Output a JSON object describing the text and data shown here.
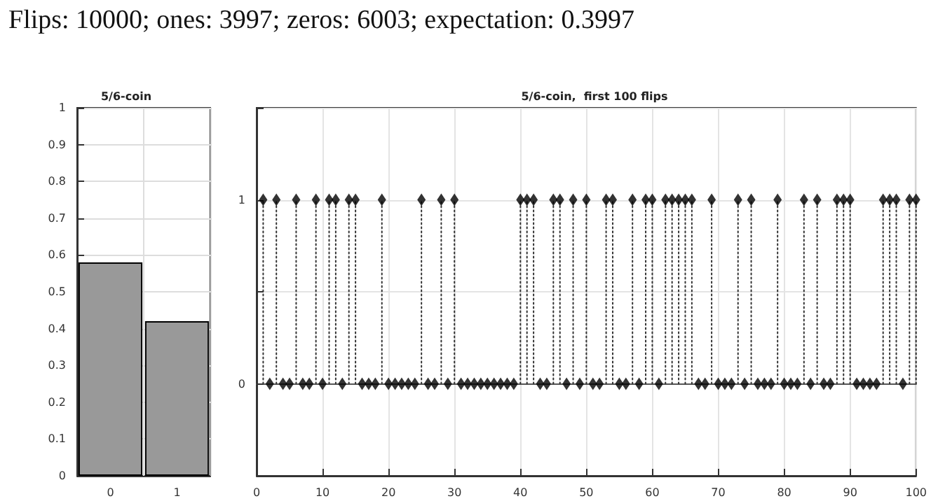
{
  "chart_data": [
    {
      "type": "bar",
      "title": "5/6-coin",
      "annotations": [
        "Flips: 10000; ones: 3997; zeros: 6003; expectation: 0.3997"
      ],
      "categories": [
        "0",
        "1"
      ],
      "values": [
        0.58,
        0.42
      ],
      "color": "#999999",
      "ylim": [
        0,
        1
      ],
      "yticks": [
        0,
        0.1,
        0.2,
        0.3,
        0.4,
        0.5,
        0.6,
        0.7,
        0.8,
        0.9,
        1
      ],
      "grid": true
    },
    {
      "type": "lollipop",
      "title": "5/6-coin,  first 100 flips",
      "x": [
        1,
        2,
        3,
        4,
        5,
        6,
        7,
        8,
        9,
        10,
        11,
        12,
        13,
        14,
        15,
        16,
        17,
        18,
        19,
        20,
        21,
        22,
        23,
        24,
        25,
        26,
        27,
        28,
        29,
        30,
        31,
        32,
        33,
        34,
        35,
        36,
        37,
        38,
        39,
        40,
        41,
        42,
        43,
        44,
        45,
        46,
        47,
        48,
        49,
        50,
        51,
        52,
        53,
        54,
        55,
        56,
        57,
        58,
        59,
        60,
        61,
        62,
        63,
        64,
        65,
        66,
        67,
        68,
        69,
        70,
        71,
        72,
        73,
        74,
        75,
        76,
        77,
        78,
        79,
        80,
        81,
        82,
        83,
        84,
        85,
        86,
        87,
        88,
        89,
        90,
        91,
        92,
        93,
        94,
        95,
        96,
        97,
        98,
        99,
        100
      ],
      "values": [
        1,
        0,
        1,
        0,
        0,
        1,
        0,
        0,
        1,
        0,
        1,
        1,
        0,
        1,
        1,
        0,
        0,
        0,
        1,
        0,
        0,
        0,
        0,
        0,
        1,
        0,
        0,
        1,
        0,
        1,
        0,
        0,
        0,
        0,
        0,
        0,
        0,
        0,
        0,
        1,
        1,
        1,
        0,
        0,
        1,
        1,
        0,
        1,
        0,
        1,
        0,
        0,
        1,
        1,
        0,
        0,
        1,
        0,
        1,
        1,
        0,
        1,
        1,
        1,
        1,
        1,
        0,
        0,
        1,
        0,
        0,
        0,
        1,
        0,
        1,
        0,
        0,
        0,
        1,
        0,
        0,
        0,
        1,
        0,
        1,
        0,
        0,
        1,
        1,
        1,
        0,
        0,
        0,
        0,
        1,
        1,
        1,
        0,
        1,
        1
      ],
      "color": "#000000",
      "marker": "diamond",
      "line_style": "dotted",
      "xlim": [
        0,
        100
      ],
      "xticks": [
        0,
        10,
        20,
        30,
        40,
        50,
        60,
        70,
        80,
        90,
        100
      ],
      "ylim": [
        -0.5,
        1.5
      ],
      "yticks": [
        {
          "value": -0.5,
          "label": null
        },
        0,
        {
          "value": 0.5,
          "label": null
        },
        1,
        {
          "value": 1.5,
          "label": null
        }
      ],
      "grid": true
    }
  ]
}
